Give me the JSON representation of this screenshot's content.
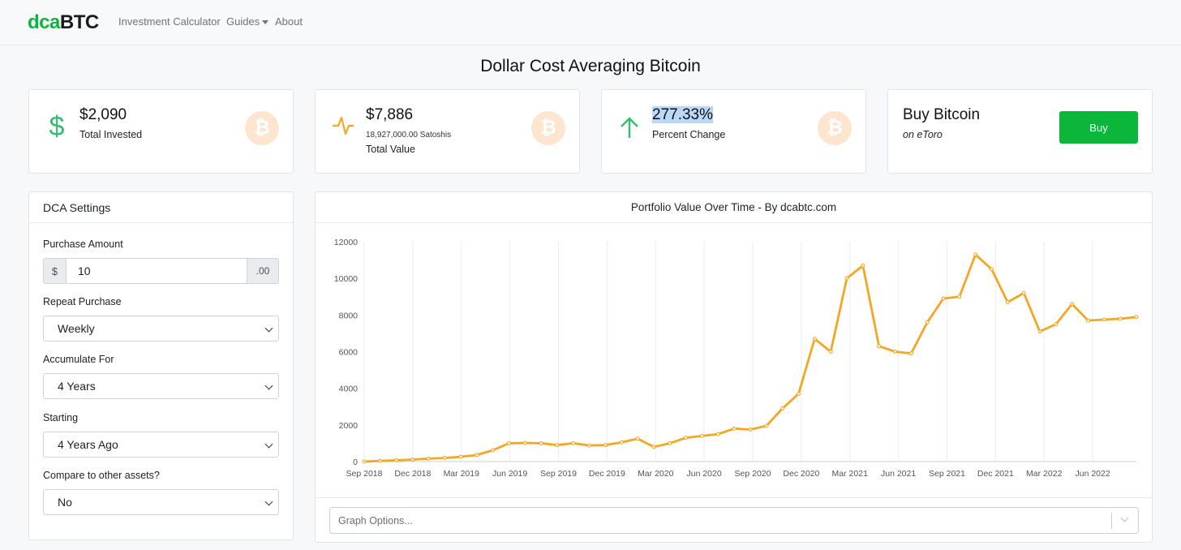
{
  "nav": {
    "brand_a": "dca",
    "brand_b": "BTC",
    "links": [
      "Investment Calculator",
      "Guides",
      "About"
    ]
  },
  "page": {
    "title": "Dollar Cost Averaging Bitcoin"
  },
  "stats": {
    "invested": {
      "value": "$2,090",
      "label": "Total Invested"
    },
    "total": {
      "value": "$7,886",
      "sub": "18,927,000.00 Satoshis",
      "label": "Total Value"
    },
    "change": {
      "value": "277.33%",
      "label": "Percent Change"
    }
  },
  "buy": {
    "title": "Buy Bitcoin",
    "subtitle": "on eToro",
    "button": "Buy"
  },
  "settings": {
    "title": "DCA Settings",
    "purchase_amount_label": "Purchase Amount",
    "currency_prefix": "$",
    "amount": "10",
    "cents_suffix": ".00",
    "repeat_label": "Repeat Purchase",
    "repeat_value": "Weekly",
    "accumulate_label": "Accumulate For",
    "accumulate_value": "4 Years",
    "starting_label": "Starting",
    "starting_value": "4 Years Ago",
    "compare_label": "Compare to other assets?",
    "compare_value": "No"
  },
  "chart_panel": {
    "title": "Portfolio Value Over Time - By dcabtc.com",
    "graph_options_placeholder": "Graph Options..."
  },
  "colors": {
    "brand_green": "#0cb63b",
    "line_orange": "#f5a623",
    "up_arrow": "#2fbf71"
  },
  "icons": {
    "invested": "dollar-icon",
    "total": "pulse-icon",
    "change": "arrow-up-icon",
    "coin": "bitcoin-icon"
  },
  "chart_data": {
    "type": "line",
    "series": [
      {
        "values_note": "",
        "name": ""
      }
    ],
    "x_ticks": [
      "Sep 2018",
      "Dec 2018",
      "Mar 2019",
      "Jun 2019",
      "Sep 2019",
      "Dec 2019",
      "Mar 2020",
      "Jun 2020",
      "Sep 2020",
      "Dec 2020",
      "Mar 2021",
      "Jun 2021",
      "Sep 2021",
      "Dec 2021",
      "Mar 2022",
      "Jun 2022"
    ],
    "y_ticks": [
      0,
      2000,
      4000,
      6000,
      8000,
      10000,
      12000
    ],
    "ylim": [
      0,
      12000
    ],
    "x": [
      "2018-09",
      "2018-10",
      "2018-11",
      "2018-12",
      "2019-01",
      "2019-02",
      "2019-03",
      "2019-04",
      "2019-05",
      "2019-06",
      "2019-07",
      "2019-08",
      "2019-09",
      "2019-10",
      "2019-11",
      "2019-12",
      "2020-01",
      "2020-02",
      "2020-03",
      "2020-04",
      "2020-05",
      "2020-06",
      "2020-07",
      "2020-08",
      "2020-09",
      "2020-10",
      "2020-11",
      "2020-12",
      "2021-01",
      "2021-02",
      "2021-03",
      "2021-04",
      "2021-05",
      "2021-06",
      "2021-07",
      "2021-08",
      "2021-09",
      "2021-10",
      "2021-11",
      "2021-12",
      "2022-01",
      "2022-02",
      "2022-03",
      "2022-04",
      "2022-05",
      "2022-06",
      "2022-07",
      "2022-08",
      "2022-09"
    ],
    "y": [
      0,
      40,
      70,
      110,
      160,
      200,
      260,
      360,
      620,
      1000,
      1020,
      1000,
      900,
      1000,
      880,
      900,
      1050,
      1250,
      800,
      1000,
      1300,
      1400,
      1500,
      1800,
      1750,
      1950,
      2900,
      3700,
      6700,
      6000,
      10000,
      10700,
      6300,
      6000,
      5900,
      7600,
      8900,
      9000,
      11300,
      10500,
      8700,
      9200,
      7100,
      7500,
      8600,
      7700,
      7750,
      7800,
      7886
    ],
    "grid": true,
    "legend": "none"
  }
}
